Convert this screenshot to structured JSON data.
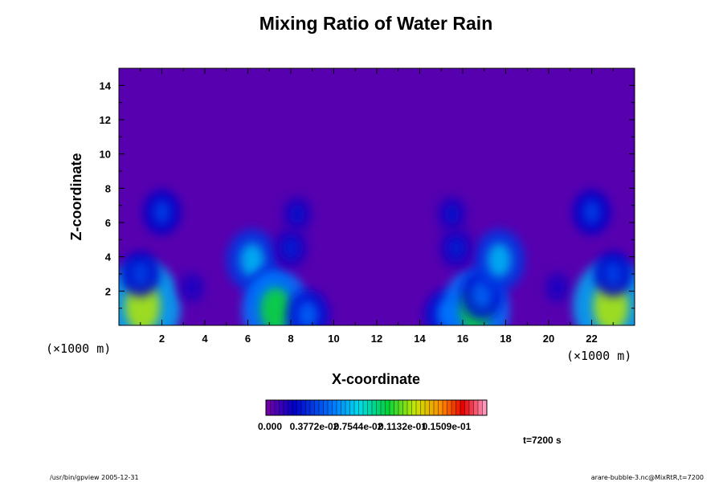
{
  "chart_data": {
    "type": "heatmap",
    "title": "Mixing Ratio of Water Rain",
    "xlabel": "X-coordinate",
    "ylabel": "Z-coordinate",
    "x_unit": "(×1000 m)",
    "z_unit": "(×1000 m)",
    "xlim": [
      0,
      24
    ],
    "ylim": [
      0,
      15
    ],
    "x_ticks": [
      2,
      4,
      6,
      8,
      10,
      12,
      14,
      16,
      18,
      20,
      22
    ],
    "y_ticks": [
      2,
      4,
      6,
      8,
      10,
      12,
      14
    ],
    "colorbar": {
      "labels": [
        "0.000",
        "0.3772e-02",
        "0.7544e-02",
        "0.1132e-01",
        "0.1509e-01"
      ],
      "min": 0.0,
      "max": 0.0189,
      "levels": 50
    },
    "background_level": 0.0005,
    "rain_features": [
      {
        "x": 1.1,
        "z": 1.1,
        "level": 0.0125
      },
      {
        "x": 1.0,
        "z": 3.0,
        "level": 0.004
      },
      {
        "x": 2.0,
        "z": 6.6,
        "level": 0.004
      },
      {
        "x": 6.2,
        "z": 3.8,
        "level": 0.007
      },
      {
        "x": 7.0,
        "z": 1.8,
        "level": 0.005
      },
      {
        "x": 7.3,
        "z": 0.9,
        "level": 0.0105
      },
      {
        "x": 8.8,
        "z": 0.6,
        "level": 0.005
      },
      {
        "x": 8.0,
        "z": 4.5,
        "level": 0.003
      },
      {
        "x": 8.3,
        "z": 6.5,
        "level": 0.0025
      },
      {
        "x": 3.4,
        "z": 2.2,
        "level": 0.002
      },
      {
        "x": 15.2,
        "z": 0.6,
        "level": 0.005
      },
      {
        "x": 16.6,
        "z": 0.9,
        "level": 0.0105
      },
      {
        "x": 16.9,
        "z": 1.8,
        "level": 0.005
      },
      {
        "x": 17.7,
        "z": 3.8,
        "level": 0.007
      },
      {
        "x": 15.7,
        "z": 4.5,
        "level": 0.003
      },
      {
        "x": 15.5,
        "z": 6.5,
        "level": 0.0025
      },
      {
        "x": 20.4,
        "z": 2.2,
        "level": 0.002
      },
      {
        "x": 22.9,
        "z": 1.1,
        "level": 0.0125
      },
      {
        "x": 23.0,
        "z": 3.0,
        "level": 0.004
      },
      {
        "x": 22.0,
        "z": 6.6,
        "level": 0.004
      }
    ]
  },
  "time_label": "t=7200 s",
  "footer": {
    "left": "/usr/bin/gpview 2005-12-31",
    "right": "arare-bubble-3.nc@MixRtR,t=7200"
  }
}
